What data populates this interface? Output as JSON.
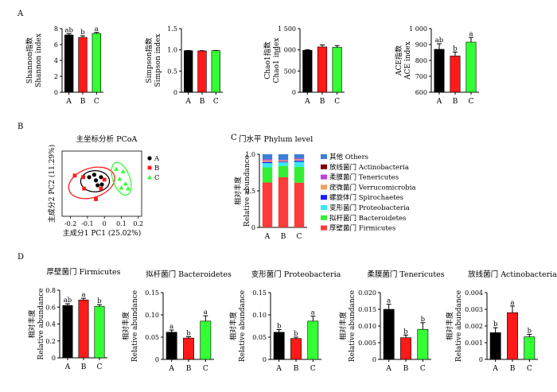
{
  "panel_labels": {
    "A": "A",
    "B": "B",
    "C": "C",
    "D": "D"
  },
  "colors": {
    "A": "#000000",
    "B": "#ff1a1a",
    "C": "#33ff33"
  },
  "chart_data": [
    {
      "id": "shannon",
      "type": "bar",
      "panel": "A",
      "categories": [
        "A",
        "B",
        "C"
      ],
      "values": [
        7.2,
        6.9,
        7.4
      ],
      "errors": [
        0.15,
        0.2,
        0.12
      ],
      "sig": [
        "ab",
        "b",
        "a"
      ],
      "ylabel_lines": [
        "Shannon指数",
        "Shannon index"
      ],
      "ylim": [
        0,
        8
      ],
      "yticks": [
        0,
        2,
        4,
        6,
        8
      ],
      "ytick_labels": [
        "0",
        "2",
        "4",
        "6",
        "8"
      ]
    },
    {
      "id": "simpson",
      "type": "bar",
      "panel": "A",
      "categories": [
        "A",
        "B",
        "C"
      ],
      "values": [
        0.98,
        0.975,
        0.98
      ],
      "errors": [
        0.005,
        0.005,
        0.004
      ],
      "sig": [
        "",
        "",
        ""
      ],
      "ylabel_lines": [
        "Simpson指数",
        "Simpson index"
      ],
      "ylim": [
        0,
        1.5
      ],
      "yticks": [
        0,
        0.5,
        1.0,
        1.5
      ],
      "ytick_labels": [
        "0",
        "0.5",
        "1.0",
        "1.5"
      ]
    },
    {
      "id": "chao1",
      "type": "bar",
      "panel": "A",
      "categories": [
        "A",
        "B",
        "C"
      ],
      "values": [
        990,
        1070,
        1060
      ],
      "errors": [
        12,
        45,
        40
      ],
      "sig": [
        "",
        "",
        ""
      ],
      "ylabel_lines": [
        "Chao1指数",
        "Chao1 index"
      ],
      "ylim": [
        0,
        1500
      ],
      "yticks": [
        0,
        500,
        1000,
        1500
      ],
      "ytick_labels": [
        "0",
        "500",
        "1 000",
        "1 500"
      ]
    },
    {
      "id": "ace",
      "type": "bar",
      "panel": "A",
      "categories": [
        "A",
        "B",
        "C"
      ],
      "values": [
        870,
        828,
        915
      ],
      "errors": [
        35,
        25,
        30
      ],
      "sig": [
        "ab",
        "b",
        "a"
      ],
      "ylabel_lines": [
        "ACE指数",
        "ACE index"
      ],
      "ylim": [
        600,
        1000
      ],
      "yticks": [
        600,
        700,
        800,
        900,
        1000
      ],
      "ytick_labels": [
        "600",
        "700",
        "800",
        "900",
        "1 000"
      ]
    },
    {
      "id": "pcoa",
      "type": "scatter",
      "panel": "B",
      "title": "主坐标分析 PCoA",
      "xlabel": "主成分1 PC1 (25.02%)",
      "ylabel": "主成分2 PC2 (11.29%)",
      "xlim": [
        -0.25,
        0.22
      ],
      "ylim": [
        -0.2,
        0.2
      ],
      "xticks": [
        -0.2,
        -0.1,
        0,
        0.1,
        0.2
      ],
      "xtick_labels": [
        "-0.2",
        "-0.1",
        "0",
        "0.1",
        "0.2"
      ],
      "legend": [
        "A",
        "B",
        "C"
      ],
      "series": [
        {
          "name": "A",
          "marker": "circle",
          "points": [
            [
              -0.09,
              0.04
            ],
            [
              -0.06,
              0.055
            ],
            [
              -0.02,
              0.04
            ],
            [
              -0.05,
              0.02
            ],
            [
              -0.04,
              -0.01
            ],
            [
              -0.015,
              -0.005
            ]
          ]
        },
        {
          "name": "B",
          "marker": "square",
          "points": [
            [
              -0.175,
              0.05
            ],
            [
              -0.125,
              0.04
            ],
            [
              -0.02,
              -0.03
            ],
            [
              0.0,
              0.025
            ],
            [
              -0.05,
              -0.095
            ],
            [
              -0.12,
              -0.03
            ]
          ]
        },
        {
          "name": "C",
          "marker": "triangle",
          "points": [
            [
              0.07,
              0.09
            ],
            [
              0.11,
              0.075
            ],
            [
              0.09,
              0.03
            ],
            [
              0.1,
              -0.025
            ],
            [
              0.14,
              -0.03
            ],
            [
              0.125,
              0.0
            ]
          ]
        }
      ],
      "ellipses": [
        {
          "group": "A",
          "cx": -0.055,
          "cy": 0.015,
          "rx": 0.085,
          "ry": 0.065,
          "angle": 0
        },
        {
          "group": "B",
          "cx": -0.075,
          "cy": 0.005,
          "rx": 0.14,
          "ry": 0.09,
          "angle": -18
        },
        {
          "group": "C",
          "cx": 0.1,
          "cy": 0.03,
          "rx": 0.05,
          "ry": 0.105,
          "angle": -20
        }
      ]
    },
    {
      "id": "phylum",
      "type": "bar",
      "stacked": true,
      "panel": "C",
      "title": "门水平 Phylum level",
      "ylabel_lines": [
        "相对丰度",
        "Relative abundance"
      ],
      "categories": [
        "A",
        "B",
        "C"
      ],
      "ylim": [
        0,
        1.0
      ],
      "yticks": [
        0,
        0.5,
        1.0
      ],
      "ytick_labels": [
        "0",
        "0.5",
        "1.0"
      ],
      "series": [
        {
          "name": "厚壁菌门 Firmicutes",
          "color": "#ff3b3b",
          "values": [
            0.615,
            0.685,
            0.612
          ]
        },
        {
          "name": "拟杆菌门 Bacteroidetes",
          "color": "#33ee33",
          "values": [
            0.205,
            0.155,
            0.215
          ]
        },
        {
          "name": "变形菌门 Proteobacteria",
          "color": "#33e8f0",
          "values": [
            0.06,
            0.05,
            0.07
          ]
        },
        {
          "name": "螺旋体门 Spirochaetes",
          "color": "#1a1aff",
          "values": [
            0.015,
            0.01,
            0.015
          ]
        },
        {
          "name": "疣微菌门 Verrucomicrobia",
          "color": "#f0a060",
          "values": [
            0.02,
            0.015,
            0.018
          ]
        },
        {
          "name": "柔膜菌门 Tenericutes",
          "color": "#c040e0",
          "values": [
            0.015,
            0.007,
            0.01
          ]
        },
        {
          "name": "放线菌门 Actinobacteria",
          "color": "#800000",
          "values": [
            0.002,
            0.003,
            0.0015
          ]
        },
        {
          "name": "其他 Others",
          "color": "#3a7fd8",
          "values": [
            0.068,
            0.075,
            0.0585
          ]
        }
      ]
    },
    {
      "id": "firmicutes",
      "type": "bar",
      "panel": "D",
      "title": "厚壁菌门 Firmicutes",
      "ylabel_lines": [
        "相对丰度",
        "Relative abundance"
      ],
      "categories": [
        "A",
        "B",
        "C"
      ],
      "values": [
        0.62,
        0.685,
        0.61
      ],
      "errors": [
        0.02,
        0.02,
        0.02
      ],
      "sig": [
        "ab",
        "a",
        "b"
      ],
      "ylim": [
        0,
        0.8
      ],
      "yticks": [
        0,
        0.2,
        0.4,
        0.6,
        0.8
      ],
      "ytick_labels": [
        "0",
        "0.2",
        "0.4",
        "0.6",
        "0.8"
      ]
    },
    {
      "id": "bacteroidetes",
      "type": "bar",
      "panel": "D",
      "title": "拟杆菌门 Bacteroidetes",
      "ylabel_lines": [
        "相对丰度",
        "Relative abundance"
      ],
      "categories": [
        "A",
        "B",
        "C"
      ],
      "values": [
        0.061,
        0.048,
        0.086
      ],
      "errors": [
        0.005,
        0.003,
        0.012
      ],
      "sig": [
        "a",
        "b",
        "a"
      ],
      "ylim": [
        0,
        0.15
      ],
      "yticks": [
        0,
        0.05,
        0.1,
        0.15
      ],
      "ytick_labels": [
        "0",
        "0.05",
        "0.10",
        "0.15"
      ]
    },
    {
      "id": "proteobacteria",
      "type": "bar",
      "panel": "D",
      "title": "变形菌门 Proteobacteria",
      "ylabel_lines": [
        "相对丰度",
        "Relative abundance"
      ],
      "categories": [
        "A",
        "B",
        "C"
      ],
      "values": [
        0.061,
        0.047,
        0.086
      ],
      "errors": [
        0.006,
        0.003,
        0.011
      ],
      "sig": [
        "b",
        "b",
        "a"
      ],
      "ylim": [
        0,
        0.15
      ],
      "yticks": [
        0,
        0.05,
        0.1,
        0.15
      ],
      "ytick_labels": [
        "0",
        "0.05",
        "0.10",
        "0.15"
      ]
    },
    {
      "id": "tenericutes",
      "type": "bar",
      "panel": "D",
      "title": "柔膜菌门 Tenericutes",
      "ylabel_lines": [
        "相对丰度",
        "Relative abundance"
      ],
      "categories": [
        "A",
        "B",
        "C"
      ],
      "values": [
        0.015,
        0.0065,
        0.009
      ],
      "errors": [
        0.0015,
        0.0008,
        0.002
      ],
      "sig": [
        "a",
        "b",
        "b"
      ],
      "ylim": [
        0,
        0.02
      ],
      "yticks": [
        0,
        0.005,
        0.01,
        0.015,
        0.02
      ],
      "ytick_labels": [
        "0",
        "0.005",
        "0.010",
        "0.015",
        "0.020"
      ]
    },
    {
      "id": "actinobacteria",
      "type": "bar",
      "panel": "D",
      "title": "放线菌门 Actinobacteria",
      "ylabel_lines": [
        "相对丰度",
        "Relative abundance"
      ],
      "categories": [
        "A",
        "B",
        "C"
      ],
      "values": [
        0.0016,
        0.0028,
        0.00135
      ],
      "errors": [
        0.0003,
        0.0004,
        0.00015
      ],
      "sig": [
        "b",
        "a",
        "b"
      ],
      "ylim": [
        0,
        0.004
      ],
      "yticks": [
        0,
        0.001,
        0.002,
        0.003,
        0.004
      ],
      "ytick_labels": [
        "0",
        "0.001",
        "0.002",
        "0.003",
        "0.004"
      ]
    }
  ]
}
